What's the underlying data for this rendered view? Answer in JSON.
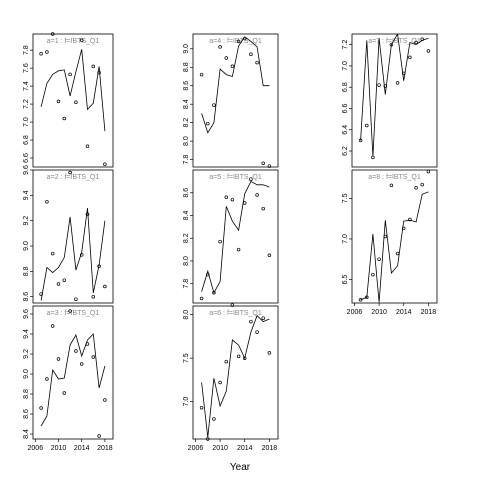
{
  "chart_data": [
    {
      "type": "line",
      "title": "a=1 : f=IBTS_Q1",
      "x": [
        2007,
        2008,
        2009,
        2010,
        2011,
        2012,
        2013,
        2014,
        2015,
        2016,
        2017,
        2018
      ],
      "points": [
        7.76,
        7.78,
        7.98,
        7.23,
        7.04,
        7.53,
        7.22,
        7.91,
        6.73,
        7.62,
        7.55,
        6.53
      ],
      "fit": [
        7.17,
        7.43,
        7.53,
        7.57,
        7.58,
        7.29,
        7.56,
        7.81,
        7.14,
        7.21,
        7.62,
        6.9
      ],
      "ylim": [
        6.5,
        7.98
      ],
      "yticks": [
        6.6,
        6.8,
        7.0,
        7.2,
        7.4,
        7.6,
        7.8
      ],
      "ytick_labels": [
        "6.6",
        "6.8",
        "7.0",
        "7.2",
        "7.4",
        "7.6",
        "7.8"
      ]
    },
    {
      "type": "line",
      "title": "a=2 : f=IBTS_Q1",
      "x": [
        2007,
        2008,
        2009,
        2010,
        2011,
        2012,
        2013,
        2014,
        2015,
        2016,
        2017,
        2018
      ],
      "points": [
        8.62,
        9.35,
        8.94,
        8.7,
        8.73,
        9.58,
        8.58,
        8.93,
        9.25,
        8.6,
        8.84,
        8.68
      ],
      "fit": [
        8.57,
        8.83,
        8.79,
        8.83,
        8.91,
        9.23,
        8.81,
        8.95,
        9.3,
        8.63,
        8.85,
        9.2
      ],
      "ylim": [
        8.55,
        9.6
      ],
      "yticks": [
        8.6,
        8.8,
        9.0,
        9.2,
        9.4,
        9.6
      ],
      "ytick_labels": [
        "8.6",
        "8.8",
        "9.0",
        "9.2",
        "9.4",
        "9.6"
      ]
    },
    {
      "type": "line",
      "title": "a=3 : f=IBTS_Q1",
      "x": [
        2007,
        2008,
        2009,
        2010,
        2011,
        2012,
        2013,
        2014,
        2015,
        2016,
        2017,
        2018
      ],
      "points": [
        8.66,
        8.95,
        9.48,
        9.15,
        8.81,
        9.63,
        9.23,
        9.1,
        9.3,
        9.17,
        8.38,
        8.74
      ],
      "fit": [
        8.48,
        8.58,
        9.04,
        8.95,
        8.96,
        9.29,
        9.39,
        9.18,
        9.34,
        9.4,
        8.86,
        9.08
      ],
      "ylim": [
        8.35,
        9.68
      ],
      "yticks": [
        8.4,
        8.6,
        8.8,
        9.0,
        9.2,
        9.4,
        9.6
      ],
      "ytick_labels": [
        "8.4",
        "8.6",
        "8.8",
        "9.0",
        "9.2",
        "9.4",
        "9.6"
      ]
    },
    {
      "type": "line",
      "title": "a=4 : f=IBTS_Q1",
      "x": [
        2007,
        2008,
        2009,
        2010,
        2011,
        2012,
        2013,
        2014,
        2015,
        2016,
        2017,
        2018
      ],
      "points": [
        8.72,
        8.19,
        8.39,
        9.02,
        8.9,
        8.81,
        9.08,
        9.11,
        8.94,
        8.85,
        7.76,
        7.73
      ],
      "fit": [
        8.3,
        8.09,
        8.2,
        8.78,
        8.72,
        8.7,
        9.03,
        9.13,
        9.08,
        9.02,
        8.6,
        8.6
      ],
      "ylim": [
        7.72,
        9.16
      ],
      "yticks": [
        7.8,
        8.0,
        8.2,
        8.4,
        8.6,
        8.8,
        9.0
      ],
      "ytick_labels": [
        "7.8",
        "8.0",
        "8.2",
        "8.4",
        "8.6",
        "8.8",
        "9.0"
      ]
    },
    {
      "type": "line",
      "title": "a=5 : f=IBTS_Q1",
      "x": [
        2007,
        2008,
        2009,
        2010,
        2011,
        2012,
        2013,
        2014,
        2015,
        2016,
        2017,
        2018
      ],
      "points": [
        7.67,
        7.88,
        7.72,
        8.17,
        8.56,
        8.54,
        8.1,
        8.51,
        8.72,
        8.58,
        8.46,
        8.05
      ],
      "fit": [
        7.73,
        7.91,
        7.72,
        7.82,
        8.48,
        8.35,
        8.27,
        8.59,
        8.7,
        8.67,
        8.67,
        8.65
      ],
      "ylim": [
        7.63,
        8.8
      ],
      "yticks": [
        7.8,
        8.0,
        8.2,
        8.4,
        8.6
      ],
      "ytick_labels": [
        "7.8",
        "8.0",
        "8.2",
        "8.4",
        "8.6"
      ]
    },
    {
      "type": "line",
      "title": "a=6 : f=IBTS_Q1",
      "x": [
        2007,
        2008,
        2009,
        2010,
        2011,
        2012,
        2013,
        2014,
        2015,
        2016,
        2017,
        2018
      ],
      "points": [
        6.93,
        6.57,
        6.8,
        7.22,
        7.46,
        8.11,
        7.52,
        7.5,
        7.92,
        7.8,
        7.96,
        7.56
      ],
      "fit": [
        7.22,
        6.59,
        7.27,
        6.95,
        7.12,
        7.71,
        7.65,
        7.5,
        7.8,
        7.99,
        7.92,
        7.95
      ],
      "ylim": [
        6.57,
        8.1
      ],
      "yticks": [
        7.0,
        7.5,
        8.0
      ],
      "ytick_labels": [
        "7.0",
        "7.5",
        "8.0"
      ]
    },
    {
      "type": "line",
      "title": "a=7 : f=IBTS_Q1",
      "x": [
        2007,
        2008,
        2009,
        2010,
        2011,
        2012,
        2013,
        2014,
        2015,
        2016,
        2017,
        2018
      ],
      "points": [
        6.3,
        6.44,
        6.14,
        6.82,
        6.81,
        7.2,
        6.84,
        6.93,
        7.08,
        7.22,
        7.25,
        7.14
      ],
      "fit": [
        6.3,
        7.24,
        6.15,
        7.26,
        6.73,
        7.2,
        7.3,
        6.86,
        7.22,
        7.2,
        7.24,
        7.26
      ],
      "ylim": [
        6.05,
        7.3
      ],
      "yticks": [
        6.2,
        6.4,
        6.6,
        6.8,
        7.0,
        7.2
      ],
      "ytick_labels": [
        "6.2",
        "6.4",
        "6.6",
        "6.8",
        "7.0",
        "7.2"
      ]
    },
    {
      "type": "line",
      "title": "a=8 : f=IBTS_Q1",
      "x": [
        2007,
        2008,
        2009,
        2010,
        2011,
        2012,
        2013,
        2014,
        2015,
        2016,
        2017,
        2018
      ],
      "points": [
        6.25,
        6.28,
        6.56,
        6.75,
        7.03,
        7.66,
        6.82,
        7.13,
        7.24,
        7.63,
        7.67,
        7.83
      ],
      "fit": [
        6.25,
        6.28,
        7.06,
        6.22,
        7.23,
        6.58,
        6.67,
        7.22,
        7.23,
        7.21,
        7.55,
        7.58
      ],
      "ylim": [
        6.21,
        7.85
      ],
      "yticks": [
        6.5,
        7.0,
        7.5
      ],
      "ytick_labels": [
        "6.5",
        "7.0",
        "7.5"
      ]
    }
  ],
  "xaxis": {
    "label": "Year",
    "xlim": [
      2005.6,
      2019.4
    ],
    "ticks": [
      2006,
      2010,
      2014,
      2018
    ],
    "tick_labels": [
      "2006",
      "2010",
      "2014",
      "2018"
    ]
  },
  "colors": {
    "line": "#000000",
    "points": "#000000",
    "strip_text": "#888888",
    "frame": "#000000"
  }
}
